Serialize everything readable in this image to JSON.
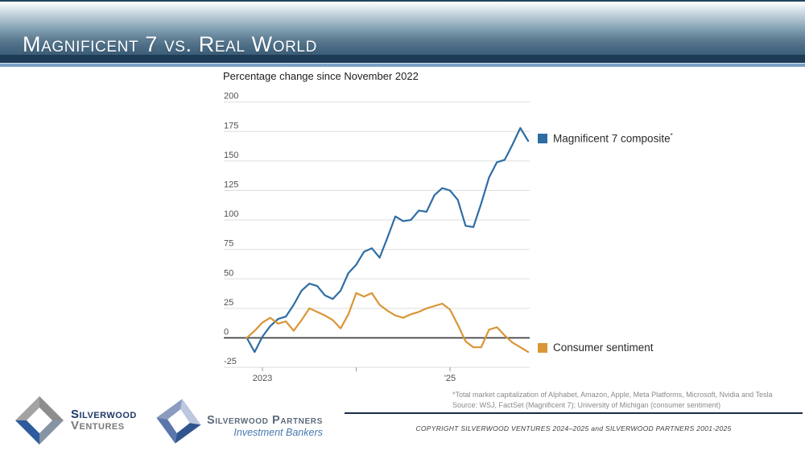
{
  "header": {
    "title": "Magnificent 7 vs. Real World"
  },
  "chart_data": {
    "type": "line",
    "title": "Percentage change since November 2022",
    "x_start": "Nov 2022",
    "x_end": "Nov 2025",
    "x_interval": "monthly",
    "ylim": [
      -25,
      200
    ],
    "y_ticks": [
      200,
      175,
      150,
      125,
      100,
      75,
      50,
      25,
      0,
      -25
    ],
    "x_ticks": [
      {
        "month": 2,
        "label": "2023"
      },
      {
        "month": 14,
        "label": ""
      },
      {
        "month": 26,
        "label": "'25"
      }
    ],
    "grid": true,
    "legend_position": "right",
    "series": [
      {
        "key": "magnificent-7",
        "name": "Magnificent 7 composite",
        "footnote_marker": "*",
        "color": "#2e6da4",
        "values": [
          0,
          -12,
          1,
          10,
          16,
          18,
          28,
          40,
          46,
          44,
          36,
          33,
          40,
          55,
          62,
          73,
          76,
          68,
          85,
          103,
          99,
          100,
          108,
          107,
          121,
          127,
          125,
          117,
          95,
          94,
          114,
          136,
          149,
          151,
          164,
          178,
          167
        ]
      },
      {
        "key": "consumer-sentiment",
        "name": "Consumer sentiment",
        "footnote_marker": "",
        "color": "#d99636",
        "values": [
          0,
          6,
          13,
          17,
          12,
          14,
          6,
          15,
          25,
          22,
          19,
          15,
          8,
          20,
          38,
          35,
          38,
          28,
          23,
          19,
          17,
          20,
          22,
          25,
          27,
          29,
          24,
          11,
          -3,
          -8,
          -8,
          7,
          9,
          2,
          -4,
          -8,
          -12
        ]
      }
    ]
  },
  "footnote": {
    "line1": "*Total market capitalization of Alphabet, Amazon, Apple, Meta Platforms, Microsoft, Nvidia and Tesla",
    "line2": "Source: WSJ, FactSet (Magnificent 7); University of Michigan (consumer sentiment)"
  },
  "footer": {
    "copyright": "COPYRIGHT SILVERWOOD VENTURES 2024–2025 and SILVERWOOD PARTNERS 2001-2025"
  },
  "logos": {
    "ventures": {
      "name_top": "Silverwood",
      "name_bottom": "Ventures",
      "colors": {
        "tl": "#a3a3a3",
        "tr": "#8d8d8d",
        "br": "#8694a4",
        "bl": "#2d5b9e"
      }
    },
    "partners": {
      "name_top": "Silverwood Partners",
      "name_bottom": "Investment Bankers",
      "colors": {
        "tl": "#8b9cc0",
        "tr": "#bcc8e0",
        "br": "#30548e",
        "bl": "#5b76aa"
      }
    }
  }
}
